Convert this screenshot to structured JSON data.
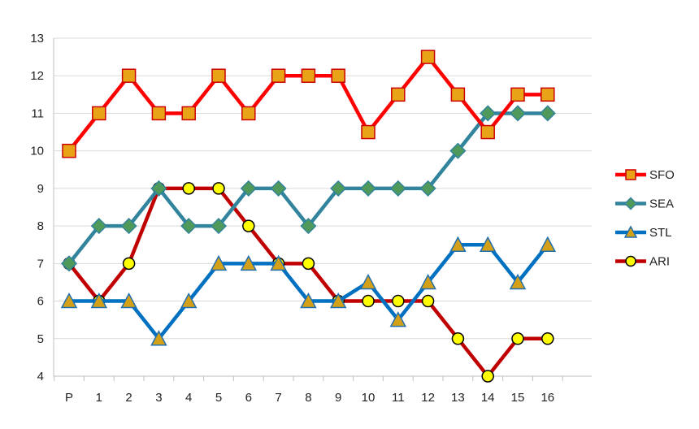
{
  "chart_data": {
    "type": "line",
    "categories": [
      "P",
      "1",
      "2",
      "3",
      "4",
      "5",
      "6",
      "7",
      "8",
      "9",
      "10",
      "11",
      "12",
      "13",
      "14",
      "15",
      "16"
    ],
    "ylim": [
      4,
      13
    ],
    "yticks": [
      4,
      5,
      6,
      7,
      8,
      9,
      10,
      11,
      12,
      13
    ],
    "grid": "horizontal",
    "legend_position": "right",
    "series": [
      {
        "name": "SFO",
        "marker": "square",
        "line_color": "#ff0000",
        "marker_fill": "#e8a317",
        "marker_stroke": "#cc0000",
        "values": [
          10,
          11,
          12,
          11,
          11,
          12,
          11,
          12,
          12,
          12,
          10.5,
          11.5,
          12.5,
          11.5,
          10.5,
          11.5,
          11.5
        ]
      },
      {
        "name": "SEA",
        "marker": "diamond",
        "line_color": "#31849b",
        "marker_fill": "#4f9a5a",
        "marker_stroke": "#31849b",
        "values": [
          7,
          8,
          8,
          9,
          8,
          8,
          9,
          9,
          8,
          9,
          9,
          9,
          9,
          10,
          11,
          11,
          11
        ]
      },
      {
        "name": "STL",
        "marker": "triangle",
        "line_color": "#0070c0",
        "marker_fill": "#d4a017",
        "marker_stroke": "#1f6fb0",
        "values": [
          6,
          6,
          6,
          5,
          6,
          7,
          7,
          7,
          6,
          6,
          6.5,
          5.5,
          6.5,
          7.5,
          7.5,
          6.5,
          7.5
        ]
      },
      {
        "name": "ARI",
        "marker": "circle",
        "line_color": "#c00000",
        "marker_fill": "#ffff00",
        "marker_stroke": "#000000",
        "values": [
          7,
          6,
          7,
          9,
          9,
          9,
          8,
          7,
          7,
          6,
          6,
          6,
          6,
          5,
          4,
          5,
          5
        ]
      }
    ]
  }
}
